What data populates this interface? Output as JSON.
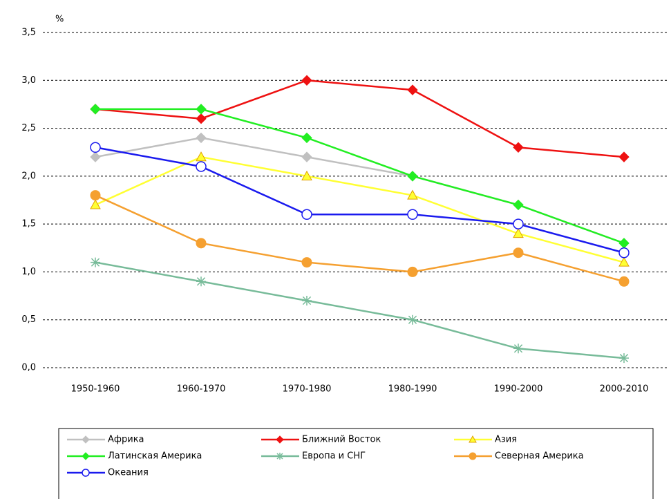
{
  "chart_data": {
    "type": "line",
    "y_label": "%",
    "categories": [
      "1950-1960",
      "1960-1970",
      "1970-1980",
      "1980-1990",
      "1990-2000",
      "2000-2010"
    ],
    "ylim": [
      0,
      3.5
    ],
    "yticks": [
      {
        "value": 0,
        "label": "0,0"
      },
      {
        "value": 0.5,
        "label": "0,5"
      },
      {
        "value": 1,
        "label": "1,0"
      },
      {
        "value": 1.5,
        "label": "1,5"
      },
      {
        "value": 2,
        "label": "2,0"
      },
      {
        "value": 2.5,
        "label": "2,5"
      },
      {
        "value": 3,
        "label": "3,0"
      },
      {
        "value": 3.5,
        "label": "3,5"
      }
    ],
    "grid": true,
    "legend": "bottom",
    "series": [
      {
        "name": "Африка",
        "color": "#c0c0c0",
        "marker": "diamond",
        "values": [
          2.2,
          2.4,
          2.2,
          2.0,
          1.7,
          1.3
        ]
      },
      {
        "name": "Ближний Восток",
        "color": "#ee1111",
        "marker": "diamond",
        "values": [
          2.7,
          2.6,
          3.0,
          2.9,
          2.3,
          2.2
        ]
      },
      {
        "name": "Азия",
        "color": "#ffff33",
        "marker": "triangle",
        "values": [
          1.7,
          2.2,
          2.0,
          1.8,
          1.4,
          1.1
        ]
      },
      {
        "name": "Латинская Америка",
        "color": "#22ee22",
        "marker": "diamond",
        "values": [
          2.7,
          2.7,
          2.4,
          2.0,
          1.7,
          1.3
        ]
      },
      {
        "name": "Европа и СНГ",
        "color": "#77bb99",
        "marker": "star",
        "values": [
          1.1,
          0.9,
          0.7,
          0.5,
          0.2,
          0.1
        ]
      },
      {
        "name": "Северная Америка",
        "color": "#f5a030",
        "marker": "circle",
        "values": [
          1.8,
          1.3,
          1.1,
          1.0,
          1.2,
          0.9
        ]
      },
      {
        "name": "Океания",
        "color": "#1a1aee",
        "marker": "open-circle",
        "values": [
          2.3,
          2.1,
          1.6,
          1.6,
          1.5,
          1.2
        ]
      }
    ]
  }
}
